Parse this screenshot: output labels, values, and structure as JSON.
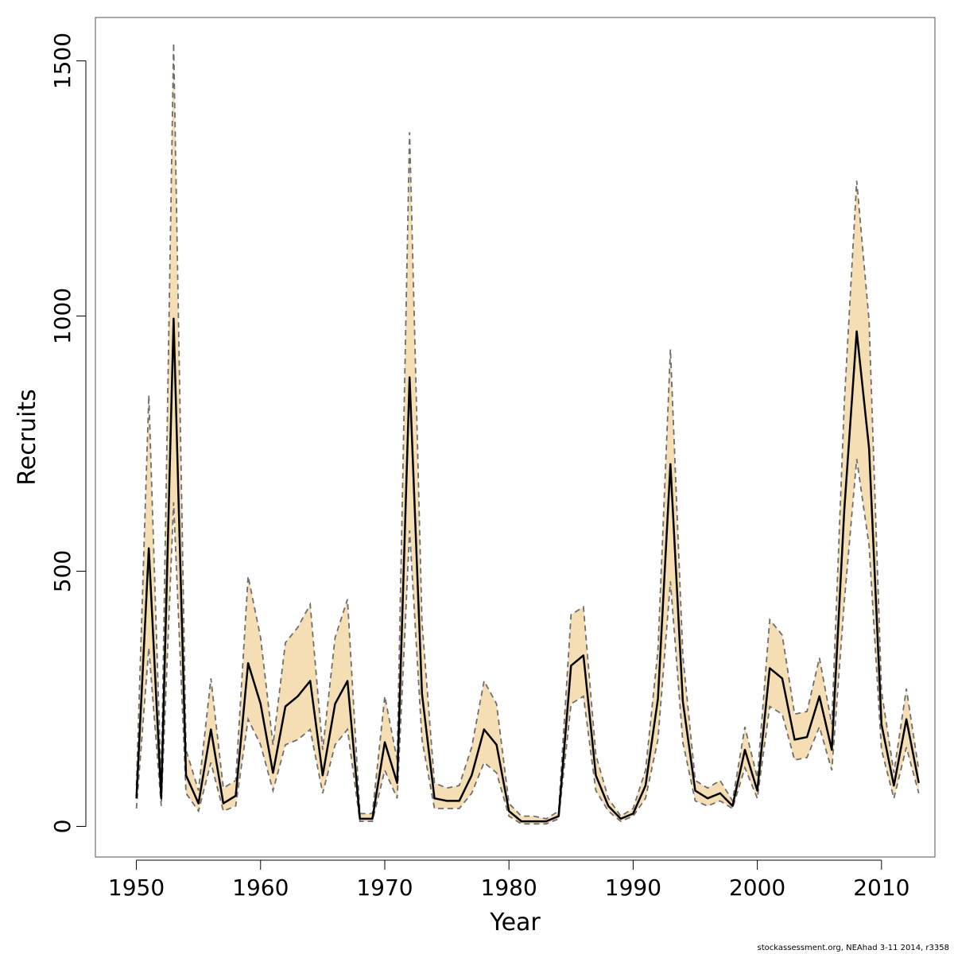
{
  "chart_data": {
    "type": "area",
    "title": "",
    "xlabel": "Year",
    "ylabel": "Recruits",
    "xlim": [
      1946.7,
      2014.3
    ],
    "ylim": [
      -60,
      1585
    ],
    "x_ticks": [
      1950,
      1960,
      1970,
      1980,
      1990,
      2000,
      2010
    ],
    "y_ticks": [
      0,
      500,
      1000,
      1500
    ],
    "x_tick_labels": [
      "1950",
      "1960",
      "1970",
      "1980",
      "1990",
      "2000",
      "2010"
    ],
    "y_tick_labels": [
      "0",
      "500",
      "1000",
      "1500"
    ],
    "grid": false,
    "legend": "none",
    "colors": {
      "band": "#f5deb3",
      "line": "#000000",
      "bounds": "#6e6e6e",
      "box": "#555555"
    },
    "x": [
      1950,
      1951,
      1952,
      1953,
      1954,
      1955,
      1956,
      1957,
      1958,
      1959,
      1960,
      1961,
      1962,
      1963,
      1964,
      1965,
      1966,
      1967,
      1968,
      1969,
      1970,
      1971,
      1972,
      1973,
      1974,
      1975,
      1976,
      1977,
      1978,
      1979,
      1980,
      1981,
      1982,
      1983,
      1984,
      1985,
      1986,
      1987,
      1988,
      1989,
      1990,
      1991,
      1992,
      1993,
      1994,
      1995,
      1996,
      1997,
      1998,
      1999,
      2000,
      2001,
      2002,
      2003,
      2004,
      2005,
      2006,
      2007,
      2008,
      2009,
      2010,
      2011,
      2012,
      2013
    ],
    "series": [
      {
        "values": [
          55,
          545,
          55,
          995,
          100,
          45,
          190,
          45,
          60,
          320,
          240,
          105,
          235,
          255,
          285,
          100,
          240,
          285,
          15,
          15,
          165,
          85,
          880,
          260,
          55,
          50,
          50,
          100,
          190,
          160,
          30,
          10,
          10,
          10,
          20,
          315,
          335,
          100,
          40,
          15,
          25,
          80,
          250,
          710,
          245,
          70,
          55,
          65,
          40,
          150,
          70,
          310,
          290,
          170,
          175,
          255,
          150,
          620,
          970,
          740,
          200,
          80,
          210,
          85
        ]
      }
    ],
    "lower": [
      35,
      350,
      40,
      635,
      65,
      30,
      125,
      30,
      40,
      210,
      160,
      70,
      160,
      170,
      190,
      65,
      160,
      190,
      10,
      10,
      110,
      55,
      580,
      170,
      35,
      35,
      35,
      65,
      125,
      105,
      20,
      5,
      5,
      5,
      15,
      240,
      255,
      70,
      30,
      10,
      20,
      55,
      170,
      480,
      165,
      50,
      40,
      50,
      35,
      115,
      55,
      235,
      220,
      130,
      135,
      195,
      110,
      440,
      720,
      550,
      150,
      55,
      155,
      65
    ],
    "upper": [
      80,
      845,
      80,
      1535,
      150,
      70,
      290,
      75,
      90,
      490,
      370,
      160,
      360,
      390,
      435,
      150,
      370,
      445,
      25,
      25,
      255,
      130,
      1360,
      400,
      85,
      75,
      80,
      155,
      285,
      240,
      45,
      20,
      20,
      15,
      30,
      415,
      430,
      140,
      55,
      20,
      35,
      110,
      345,
      935,
      335,
      90,
      75,
      90,
      50,
      195,
      95,
      405,
      375,
      220,
      225,
      330,
      200,
      830,
      1265,
      990,
      265,
      105,
      270,
      110
    ],
    "footer_note": "stockassessment.org, NEAhad  3-11  2014, r3358"
  }
}
